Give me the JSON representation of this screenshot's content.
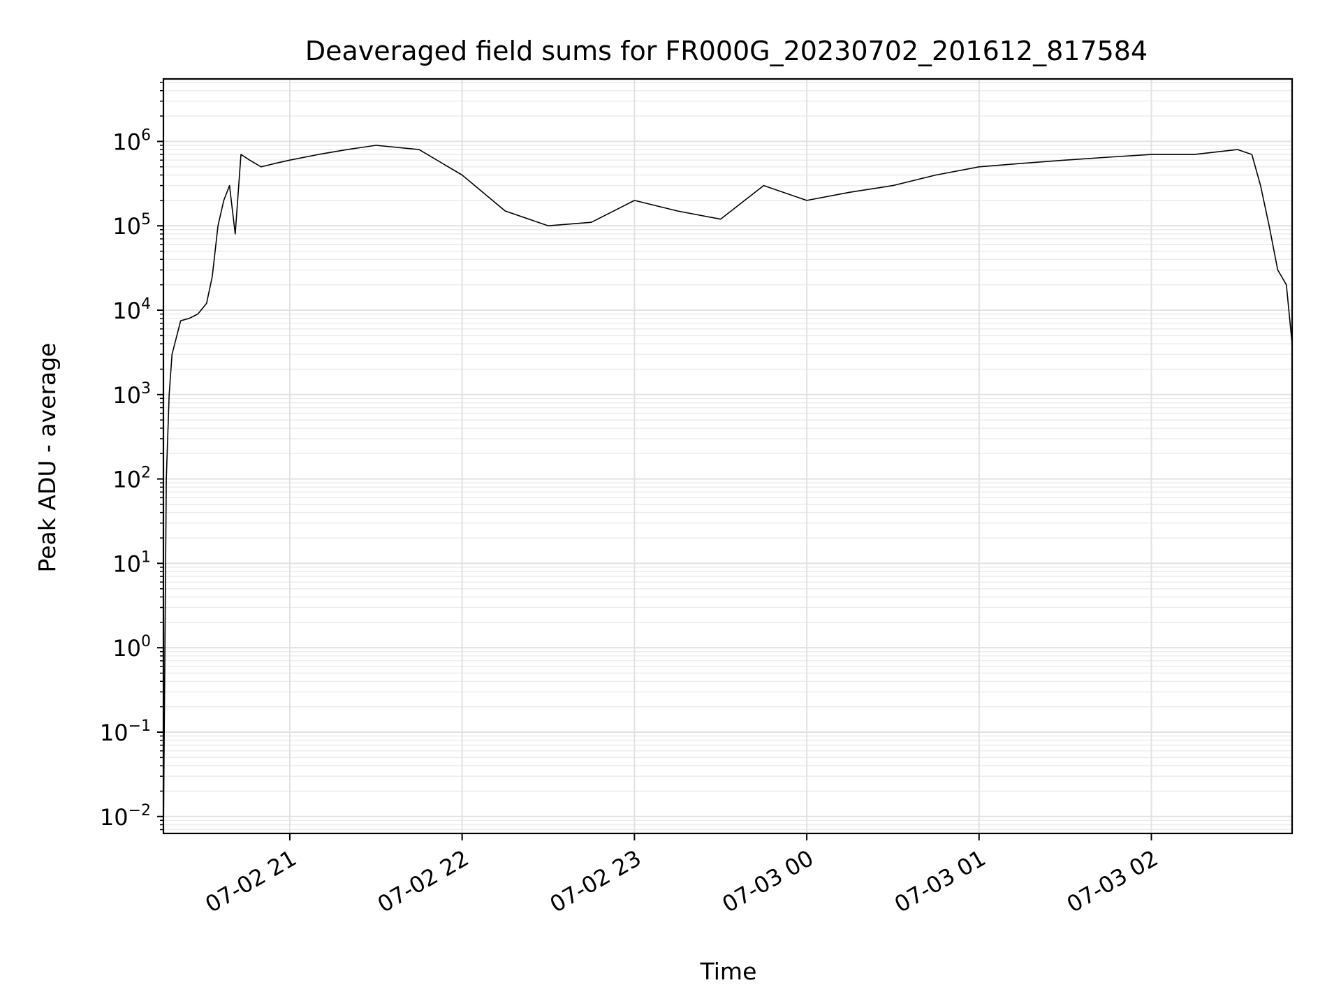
{
  "chart_data": {
    "type": "line",
    "title": "Deaveraged field sums for FR000G_20230702_201612_817584",
    "xlabel": "Time",
    "ylabel": "Peak ADU - average",
    "yscale": "log",
    "ylim": [
      0.0063,
      5500000
    ],
    "xlim": [
      "2023-07-02 20:16",
      "2023-07-03 02:49"
    ],
    "grid": true,
    "line_color": "#000000",
    "x_ticks": [
      {
        "label": "07-02 21",
        "value": "2023-07-02 21:00"
      },
      {
        "label": "07-02 22",
        "value": "2023-07-02 22:00"
      },
      {
        "label": "07-02 23",
        "value": "2023-07-02 23:00"
      },
      {
        "label": "07-03 00",
        "value": "2023-07-03 00:00"
      },
      {
        "label": "07-03 01",
        "value": "2023-07-03 01:00"
      },
      {
        "label": "07-03 02",
        "value": "2023-07-03 02:00"
      }
    ],
    "y_ticks": [
      {
        "base": "10",
        "exp": "−2",
        "value": 0.01
      },
      {
        "base": "10",
        "exp": "−1",
        "value": 0.1
      },
      {
        "base": "10",
        "exp": "0",
        "value": 1
      },
      {
        "base": "10",
        "exp": "1",
        "value": 10
      },
      {
        "base": "10",
        "exp": "2",
        "value": 100
      },
      {
        "base": "10",
        "exp": "3",
        "value": 1000
      },
      {
        "base": "10",
        "exp": "4",
        "value": 10000
      },
      {
        "base": "10",
        "exp": "5",
        "value": 100000
      },
      {
        "base": "10",
        "exp": "6",
        "value": 1000000
      }
    ],
    "series": [
      {
        "x": [
          "2023-07-02 20:16",
          "2023-07-02 20:17",
          "2023-07-02 20:18",
          "2023-07-02 20:19",
          "2023-07-02 20:22",
          "2023-07-02 20:25",
          "2023-07-02 20:28",
          "2023-07-02 20:31",
          "2023-07-02 20:33",
          "2023-07-02 20:35",
          "2023-07-02 20:37",
          "2023-07-02 20:39",
          "2023-07-02 20:41",
          "2023-07-02 20:43",
          "2023-07-02 20:46",
          "2023-07-02 20:50",
          "2023-07-02 20:55",
          "2023-07-02 21:00",
          "2023-07-02 21:10",
          "2023-07-02 21:20",
          "2023-07-02 21:30",
          "2023-07-02 21:45",
          "2023-07-02 22:00",
          "2023-07-02 22:15",
          "2023-07-02 22:30",
          "2023-07-02 22:45",
          "2023-07-02 23:00",
          "2023-07-02 23:15",
          "2023-07-02 23:30",
          "2023-07-02 23:45",
          "2023-07-03 00:00",
          "2023-07-03 00:15",
          "2023-07-03 00:30",
          "2023-07-03 00:45",
          "2023-07-03 01:00",
          "2023-07-03 01:15",
          "2023-07-03 01:30",
          "2023-07-03 01:45",
          "2023-07-03 02:00",
          "2023-07-03 02:15",
          "2023-07-03 02:30",
          "2023-07-03 02:35",
          "2023-07-03 02:38",
          "2023-07-03 02:41",
          "2023-07-03 02:44",
          "2023-07-03 02:47",
          "2023-07-03 02:49"
        ],
        "values": [
          0.0063,
          100,
          1000,
          3000,
          7500,
          8000,
          9000,
          12000,
          25000,
          100000,
          200000,
          300000,
          80000,
          700000,
          600000,
          500000,
          550000,
          600000,
          700000,
          800000,
          900000,
          800000,
          400000,
          150000,
          100000,
          110000,
          200000,
          150000,
          120000,
          300000,
          200000,
          250000,
          300000,
          400000,
          500000,
          550000,
          600000,
          650000,
          700000,
          700000,
          800000,
          700000,
          300000,
          100000,
          30000,
          20000,
          4000
        ]
      }
    ]
  }
}
